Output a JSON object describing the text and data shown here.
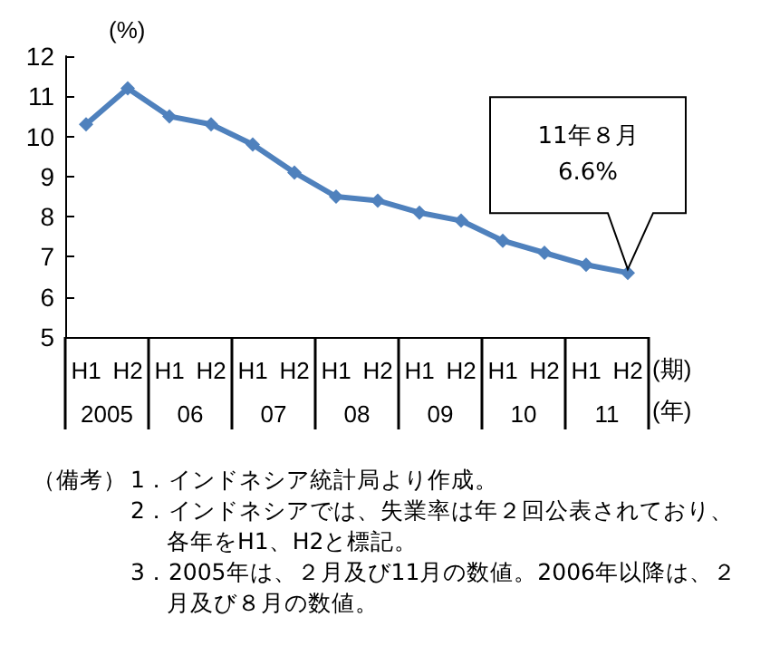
{
  "chart_data": {
    "type": "line",
    "ylabel": "(%)",
    "xlabel": "(期)",
    "categories": [
      "H1",
      "H2",
      "H1",
      "H2",
      "H1",
      "H2",
      "H1",
      "H2",
      "H1",
      "H2",
      "H1",
      "H2",
      "H1",
      "H2"
    ],
    "series": [
      {
        "color": "#4f81bd",
        "values": [
          10.3,
          11.2,
          10.5,
          10.3,
          9.8,
          9.1,
          8.5,
          8.4,
          8.1,
          7.9,
          7.4,
          7.1,
          6.8,
          6.6
        ]
      }
    ],
    "ylim": [
      5,
      12
    ],
    "yticks": [
      5,
      6,
      7,
      8,
      9,
      10,
      11,
      12
    ],
    "grid": false,
    "marker": "diamond",
    "line_style": "solid",
    "annotations": [
      "2005",
      "06",
      "07",
      "08",
      "09",
      "10",
      "11",
      "(年)",
      "11年８月\n6.6%",
      "（備考）",
      "1．インドネシア統計局より作成。",
      "2．インドネシアでは、失業率は年２回公表されており、各年をH1、H2と標記。",
      "3．2005年は、２月及び11月の数値。2006年以降は、２月及び８月の数値。"
    ]
  }
}
